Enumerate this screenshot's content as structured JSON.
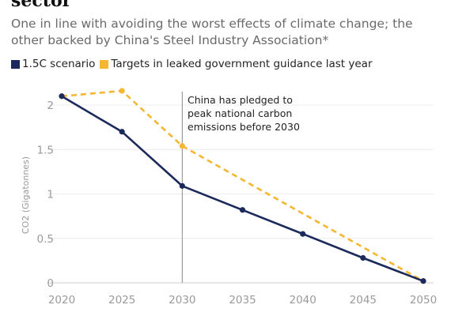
{
  "header": {
    "title": "sector",
    "subtitle": "One in line with avoiding the worst effects of climate change; the other backed by China's Steel Industry Association*"
  },
  "chart_data": {
    "type": "line",
    "x": [
      2020,
      2025,
      2030,
      2035,
      2040,
      2045,
      2050
    ],
    "series": [
      {
        "name": "1.5C scenario",
        "color": "#1b2a5b",
        "style": "solid",
        "points": [
          [
            2020,
            2.1
          ],
          [
            2025,
            1.7
          ],
          [
            2030,
            1.09
          ],
          [
            2035,
            0.82
          ],
          [
            2040,
            0.55
          ],
          [
            2045,
            0.28
          ],
          [
            2050,
            0.02
          ]
        ]
      },
      {
        "name": "Targets in leaked government guidance last year",
        "color": "#f5b731",
        "style": "dashed",
        "points": [
          [
            2020,
            2.1
          ],
          [
            2025,
            2.16
          ],
          [
            2030,
            1.54
          ],
          [
            2050,
            0.02
          ]
        ]
      }
    ],
    "ylabel": "CO2 (Gigatonnes)",
    "xlim": [
      2020,
      2050
    ],
    "ylim": [
      0,
      2.1
    ],
    "yticks": [
      "0",
      "0.5",
      "1",
      "1.5",
      "2"
    ],
    "xticks": [
      "2020",
      "2025",
      "2030",
      "2035",
      "2040",
      "2045",
      "2050"
    ],
    "grid": true,
    "legend": "top-left",
    "annotation": {
      "x": 2030,
      "lines": [
        "China has pledged to",
        "peak national carbon",
        "emissions before 2030"
      ]
    }
  }
}
